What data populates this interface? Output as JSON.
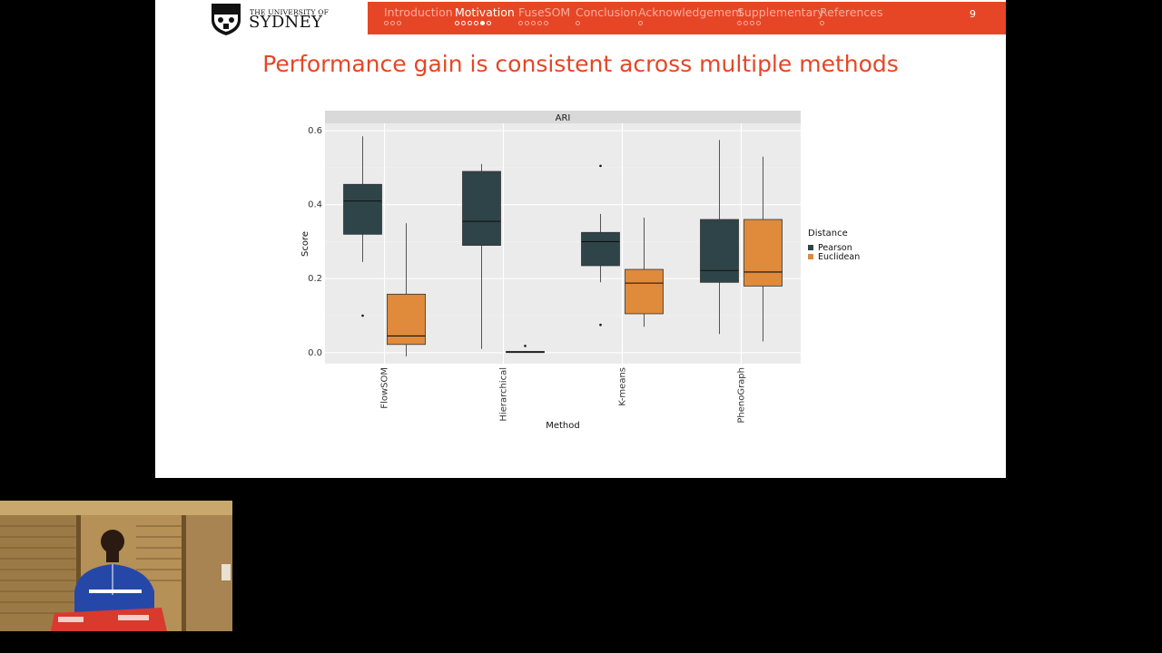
{
  "header": {
    "logo": {
      "line1": "THE UNIVERSITY OF",
      "line2": "SYDNEY"
    },
    "nav": [
      {
        "label": "Introduction",
        "dots": 3,
        "filled": -1,
        "active": false
      },
      {
        "label": "Motivation",
        "dots": 6,
        "filled": 4,
        "active": true
      },
      {
        "label": "FuseSOM",
        "dots": 5,
        "filled": -1,
        "active": false
      },
      {
        "label": "Conclusion",
        "dots": 1,
        "filled": -1,
        "active": false
      },
      {
        "label": "Acknowledgement",
        "dots": 1,
        "filled": -1,
        "active": false
      },
      {
        "label": "Supplementary",
        "dots": 4,
        "filled": -1,
        "active": false
      },
      {
        "label": "References",
        "dots": 1,
        "filled": -1,
        "active": false
      }
    ],
    "page_number": "9"
  },
  "slide": {
    "title": "Performance gain is consistent across multiple methods"
  },
  "colors": {
    "accent": "#e64626",
    "pearson": "#2e4448",
    "euclidean": "#e08a3c"
  },
  "chart_data": {
    "type": "boxplot",
    "facet": "ARI",
    "xlabel": "Method",
    "ylabel": "Score",
    "ylim": [
      0,
      0.6
    ],
    "yticks": [
      "0.0",
      "0.2",
      "0.4",
      "0.6"
    ],
    "categories": [
      "FlowSOM",
      "Hierarchical",
      "K-means",
      "PhenoGraph"
    ],
    "legend": {
      "title": "Distance",
      "position": "right"
    },
    "series": [
      {
        "name": "Pearson",
        "boxes": [
          {
            "min": 0.245,
            "q1": 0.32,
            "median": 0.41,
            "q3": 0.455,
            "max": 0.585,
            "outliers": [
              0.1
            ]
          },
          {
            "min": 0.01,
            "q1": 0.29,
            "median": 0.355,
            "q3": 0.49,
            "max": 0.51,
            "outliers": []
          },
          {
            "min": 0.19,
            "q1": 0.235,
            "median": 0.3,
            "q3": 0.325,
            "max": 0.375,
            "outliers": [
              0.505,
              0.075
            ]
          },
          {
            "min": 0.05,
            "q1": 0.19,
            "median": 0.222,
            "q3": 0.36,
            "max": 0.575,
            "outliers": []
          }
        ]
      },
      {
        "name": "Euclidean",
        "boxes": [
          {
            "min": -0.01,
            "q1": 0.022,
            "median": 0.045,
            "q3": 0.158,
            "max": 0.35,
            "outliers": []
          },
          {
            "min": 0.0,
            "q1": 0.001,
            "median": 0.002,
            "q3": 0.003,
            "max": 0.004,
            "outliers": [
              0.018
            ]
          },
          {
            "min": 0.07,
            "q1": 0.105,
            "median": 0.188,
            "q3": 0.225,
            "max": 0.365,
            "outliers": []
          },
          {
            "min": 0.03,
            "q1": 0.18,
            "median": 0.218,
            "q3": 0.36,
            "max": 0.53,
            "outliers": []
          }
        ]
      }
    ]
  }
}
